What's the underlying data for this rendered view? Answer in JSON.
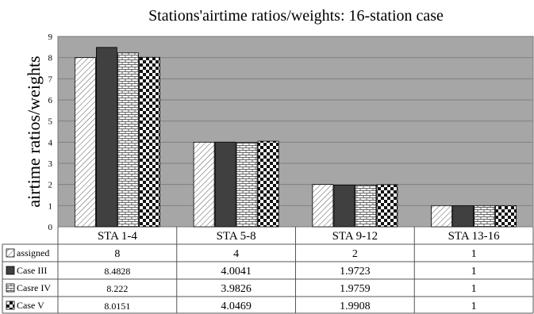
{
  "chart_data": {
    "type": "bar",
    "title": "Stations'airtime ratios/weights: 16-station case",
    "ylabel": "airtime ratios/weights",
    "xlabel": "",
    "ylim": [
      0,
      9
    ],
    "yticks": [
      "0",
      "1",
      "2",
      "3",
      "4",
      "5",
      "6",
      "7",
      "8",
      "9"
    ],
    "grid": true,
    "plot_background": "#a6a6a6",
    "legend": "data-table-left",
    "categories": [
      "STA 1-4",
      "STA 5-8",
      "STA 9-12",
      "STA 13-16"
    ],
    "series": [
      {
        "name": "assigned",
        "pattern": "diagonal-hatch",
        "values": [
          8,
          4,
          2,
          1
        ],
        "labels": [
          "8",
          "4",
          "2",
          "1"
        ]
      },
      {
        "name": "Case III",
        "pattern": "solid-dark",
        "color": "#404040",
        "values": [
          8.4828,
          4.0041,
          1.9723,
          1
        ],
        "labels": [
          "8.4828",
          "4.0041",
          "1.9723",
          "1"
        ]
      },
      {
        "name": "Casre IV",
        "pattern": "brick",
        "values": [
          8.222,
          3.9826,
          1.9759,
          1
        ],
        "labels": [
          "8.222",
          "3.9826",
          "1.9759",
          "1"
        ]
      },
      {
        "name": "Case V",
        "pattern": "checkerboard",
        "values": [
          8.0151,
          4.0469,
          1.9908,
          1
        ],
        "labels": [
          "8.0151",
          "4.0469",
          "1.9908",
          "1"
        ]
      }
    ]
  }
}
